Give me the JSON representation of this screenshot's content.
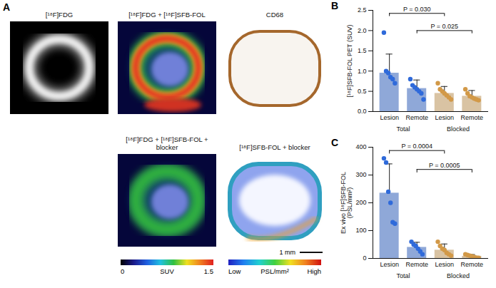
{
  "panel_a": {
    "letter": "A",
    "images": [
      {
        "title": "[¹⁸F]FDG"
      },
      {
        "title": "[¹⁸F]FDG + [¹⁸F]SFB-FOL"
      },
      {
        "title": "CD68"
      },
      {
        "title": "[¹⁸F]FDG + [¹⁸F]SFB-FOL + blocker"
      },
      {
        "title": "[¹⁸F]SFB-FOL + blocker"
      }
    ],
    "colorbars": [
      {
        "range": [
          0,
          1.5
        ],
        "label": "SUV"
      },
      {
        "labels": [
          "Low",
          "High"
        ],
        "label": "PSL/mm²"
      }
    ],
    "scale_bar": "1 mm"
  },
  "chart_data": [
    {
      "panel": "B",
      "type": "bar",
      "y_label": "[¹⁸F]SFB-FOL PET (SUV)",
      "categories": [
        "Lesion",
        "Remote",
        "Lesion",
        "Remote"
      ],
      "group_labels": [
        "Total",
        "Total",
        "Blocked",
        "Blocked"
      ],
      "values": [
        0.95,
        0.57,
        0.45,
        0.38
      ],
      "errors": [
        0.47,
        0.21,
        0.17,
        0.14
      ],
      "points": [
        [
          1.95,
          1.0,
          0.95,
          0.85,
          0.8,
          0.7
        ],
        [
          0.8,
          0.65,
          0.6,
          0.55,
          0.5,
          0.45,
          0.3
        ],
        [
          0.7,
          0.55,
          0.5,
          0.45,
          0.4,
          0.35,
          0.3
        ],
        [
          0.55,
          0.45,
          0.38,
          0.35,
          0.32,
          0.3,
          0.28
        ]
      ],
      "colors": [
        "#8fa8d8",
        "#8fa8d8",
        "#d9c3a3",
        "#d9c3a3"
      ],
      "comparisons": [
        {
          "from": 0,
          "to": 2,
          "label": "P = 0.030"
        },
        {
          "from": 1,
          "to": 3,
          "label": "P = 0.025"
        }
      ],
      "ylim": [
        0,
        2.5
      ],
      "yticks": [
        {
          "value": 0,
          "label": "0.0"
        },
        0.5,
        {
          "value": 1,
          "label": "1.0"
        },
        1.5,
        {
          "value": 2,
          "label": "2.0"
        },
        2.5
      ]
    },
    {
      "panel": "C",
      "type": "bar",
      "y_label": "Ex vivo [¹⁸F]SFB-FOL (PSL/mm²)",
      "categories": [
        "Lesion",
        "Remote",
        "Lesion",
        "Remote"
      ],
      "group_labels": [
        "Total",
        "Total",
        "Blocked",
        "Blocked"
      ],
      "values": [
        235,
        40,
        30,
        8
      ],
      "errors": [
        105,
        18,
        22,
        6
      ],
      "points": [
        [
          360,
          345,
          240,
          200,
          130,
          125
        ],
        [
          60,
          50,
          45,
          35,
          25,
          15
        ],
        [
          60,
          45,
          35,
          30,
          20,
          15,
          10
        ],
        [
          15,
          12,
          10,
          8,
          5,
          3,
          2
        ]
      ],
      "colors": [
        "#8fa8d8",
        "#8fa8d8",
        "#d9c3a3",
        "#d9c3a3"
      ],
      "comparisons": [
        {
          "from": 0,
          "to": 2,
          "label": "P = 0.0004"
        },
        {
          "from": 1,
          "to": 3,
          "label": "P = 0.0005"
        }
      ],
      "ylim": [
        0,
        400
      ],
      "yticks": [
        0,
        100,
        200,
        300,
        400
      ]
    }
  ]
}
